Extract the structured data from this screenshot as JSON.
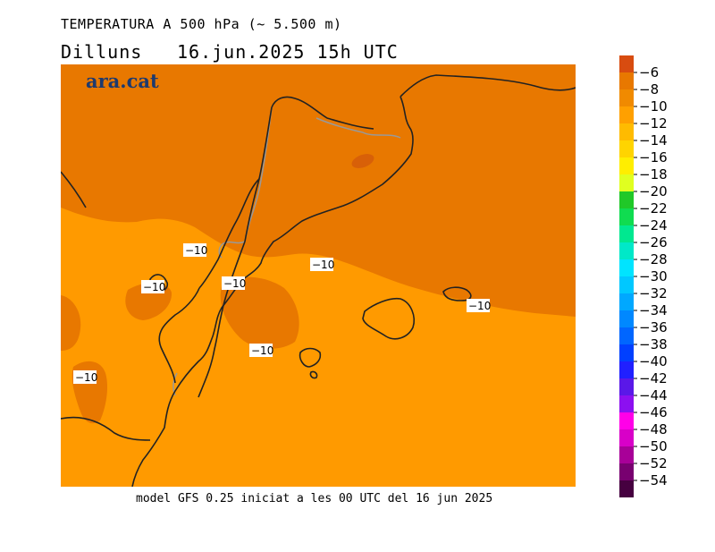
{
  "header": {
    "title": "TEMPERATURA A 500 hPa (~ 5.500 m)",
    "day": "Dilluns",
    "date": "16.jun.2025 15h UTC"
  },
  "map": {
    "logo": "ara.cat",
    "contour_label": "−10",
    "colors": {
      "warm": "#e87800",
      "mild": "#ff9a00",
      "spot": "#d86008",
      "border": "#222222",
      "river": "#999999"
    }
  },
  "footer": "model GFS 0.25 iniciat a les 00 UTC del 16 jun 2025",
  "legend": {
    "ticks": [
      "−6",
      "−8",
      "−10",
      "−12",
      "−14",
      "−16",
      "−18",
      "−20",
      "−22",
      "−24",
      "−26",
      "−28",
      "−30",
      "−32",
      "−34",
      "−36",
      "−38",
      "−40",
      "−42",
      "−44",
      "−46",
      "−48",
      "−50",
      "−52",
      "−54"
    ],
    "colors": [
      "#d84c10",
      "#e87800",
      "#f08a00",
      "#ffa000",
      "#ffbb00",
      "#ffd400",
      "#ffee00",
      "#e0ff20",
      "#20c828",
      "#10dc50",
      "#00e890",
      "#00e8c8",
      "#00e4ff",
      "#00c8ff",
      "#00a8ff",
      "#0088ff",
      "#0066ff",
      "#0040ff",
      "#2020ff",
      "#5a18e8",
      "#8c10f0",
      "#ff00e8",
      "#d800c8",
      "#a80098",
      "#780070",
      "#460040"
    ]
  }
}
